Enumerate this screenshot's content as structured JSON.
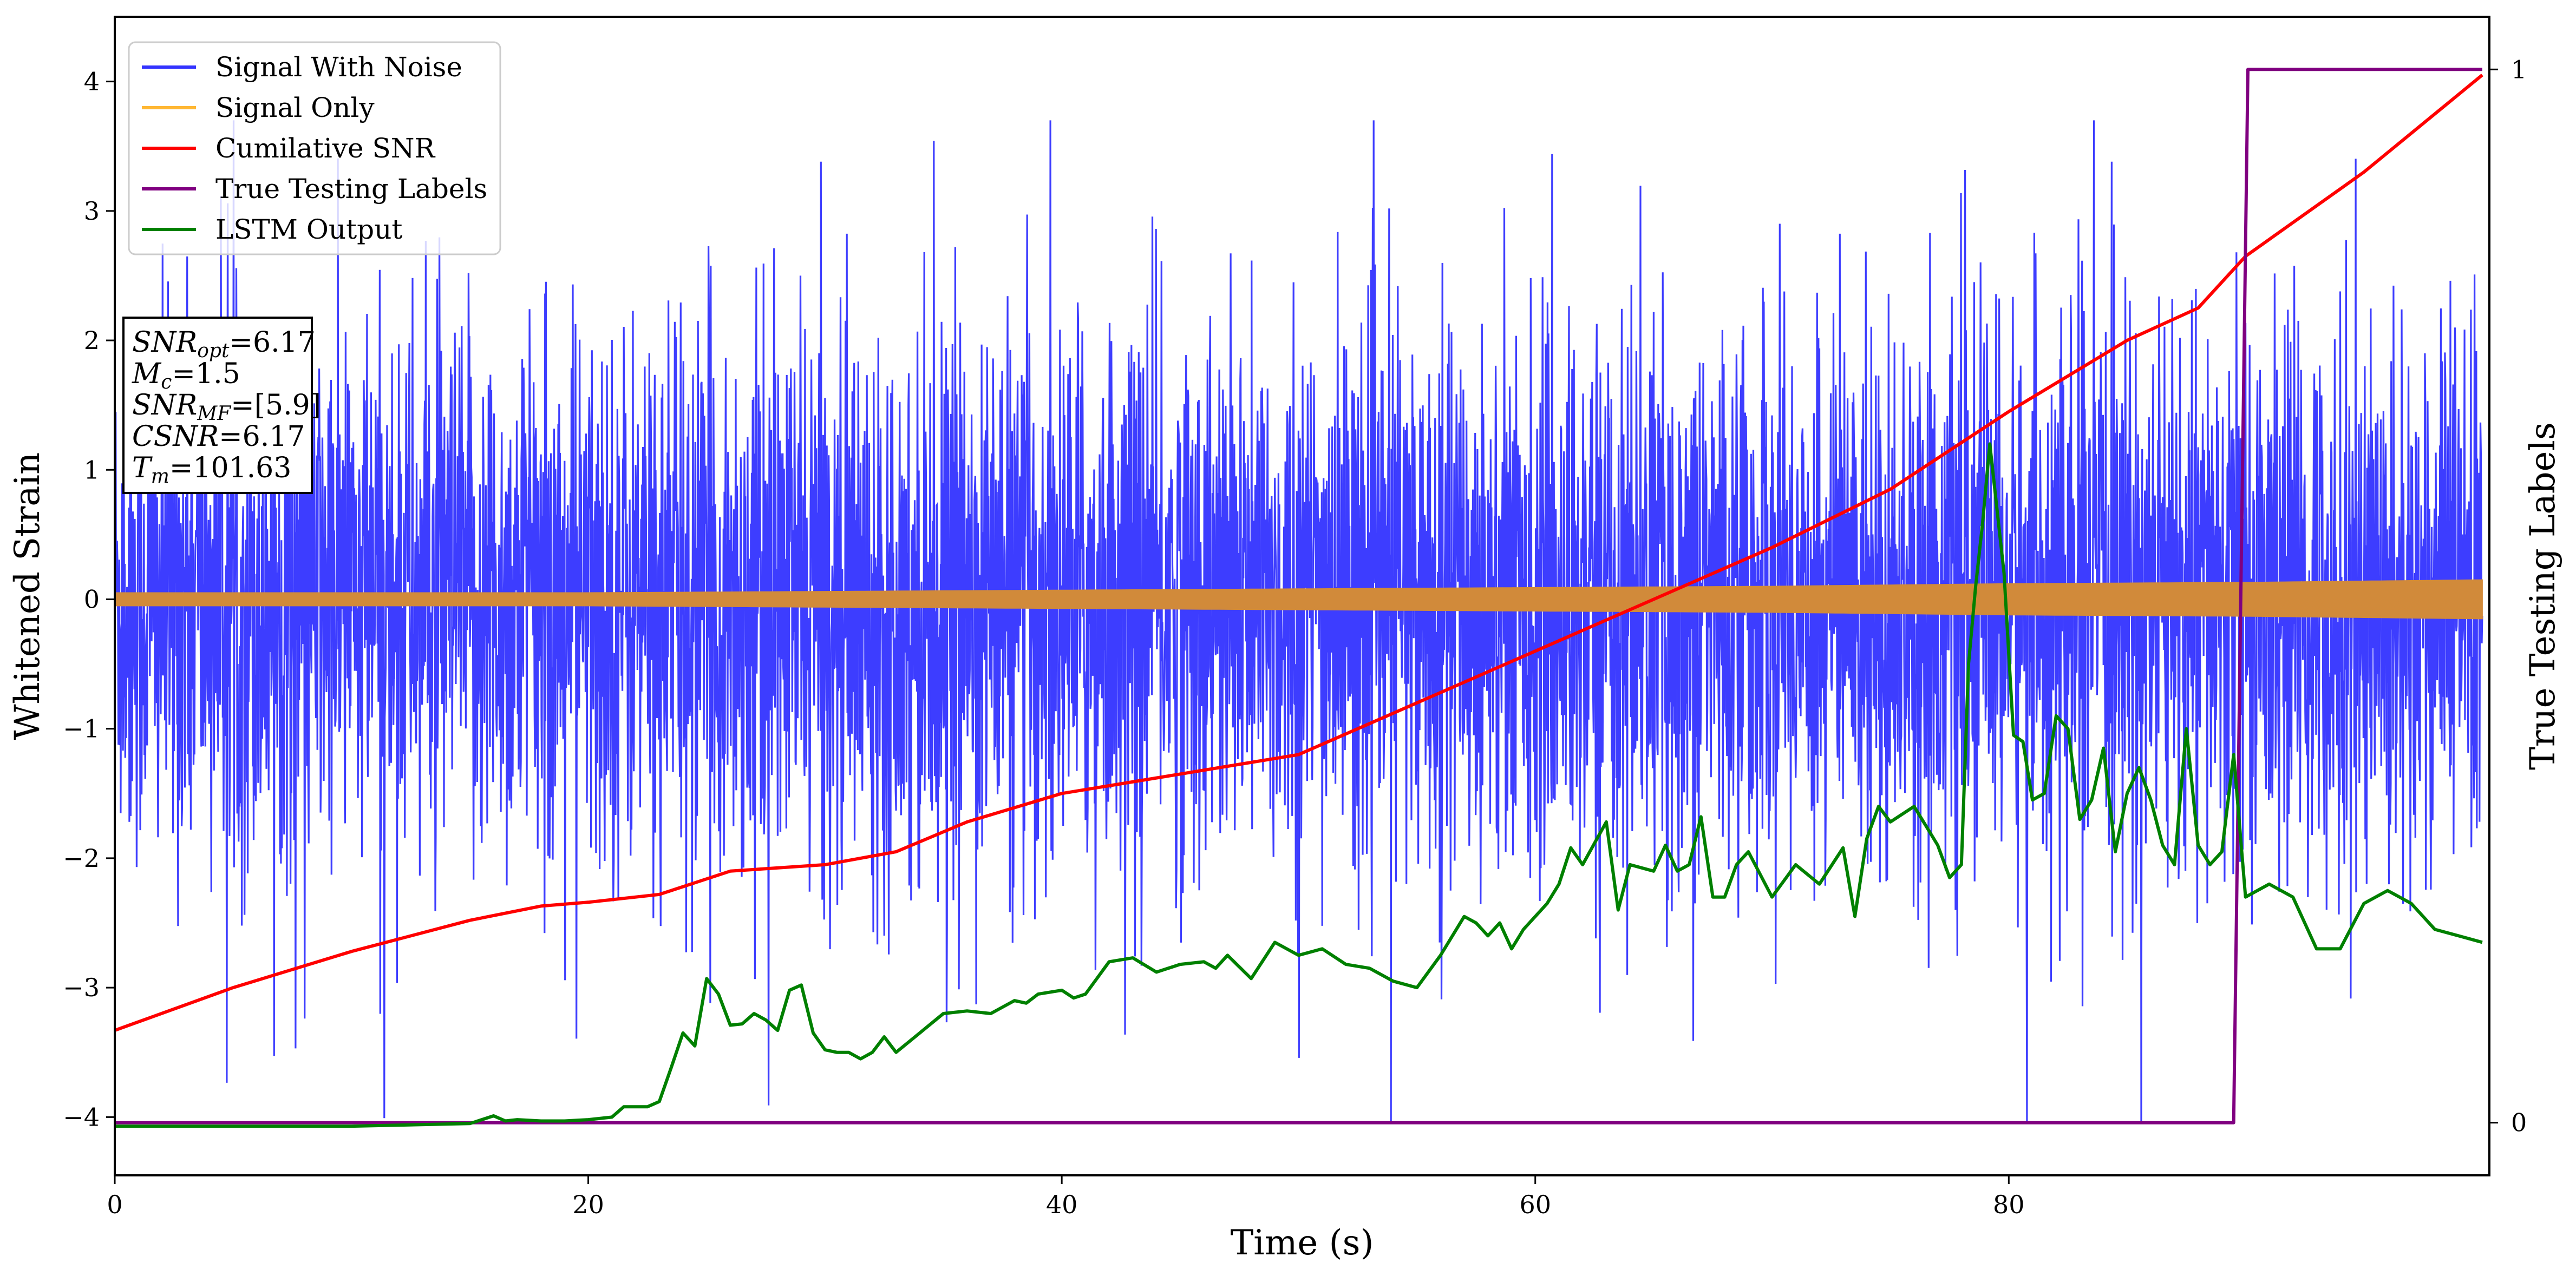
{
  "chart_data": {
    "type": "line",
    "xlabel": "Time (s)",
    "ylabel": "Whitened Strain",
    "ylabel_right": "True Testing Labels",
    "xlim": [
      0,
      100.3
    ],
    "ylim": [
      -4.45,
      4.5
    ],
    "ylim_right": [
      -0.05,
      1.05
    ],
    "x_ticks": [
      0,
      20,
      40,
      60,
      80
    ],
    "y_ticks": [
      -4,
      -3,
      -2,
      -1,
      0,
      1,
      2,
      3,
      4
    ],
    "y_ticks_right": [
      0,
      1
    ],
    "grid": false,
    "legend_position": "upper-left",
    "legend": [
      {
        "label": "Signal With Noise",
        "color": "#3333ff"
      },
      {
        "label": "Signal Only",
        "color": "#ffb733"
      },
      {
        "label": "Cumilative SNR",
        "color": "#ff0000"
      },
      {
        "label": "True Testing Labels",
        "color": "#800080"
      },
      {
        "label": "LSTM Output",
        "color": "#008000"
      }
    ],
    "info_box": [
      {
        "var": "SNR",
        "sub": "opt",
        "value": "=6.17"
      },
      {
        "var": "M",
        "sub": "c",
        "value": "=1.5"
      },
      {
        "var": "SNR",
        "sub": "MF",
        "value": "=[5.9]"
      },
      {
        "var": "CSNR",
        "sub": "",
        "value": "=6.17"
      },
      {
        "var": "T",
        "sub": "m",
        "value": "=101.63"
      }
    ],
    "series": [
      {
        "name": "Signal With Noise",
        "axis": "left",
        "color": "#3333ff",
        "style": "dense-noise",
        "typical_amplitude": 1.6,
        "peak_amplitude": 3.7
      },
      {
        "name": "Signal Only",
        "axis": "left",
        "color": "#d18a3a",
        "style": "envelope",
        "x": [
          0,
          20,
          40,
          50,
          60,
          70,
          80,
          90,
          100
        ],
        "amplitude": [
          0.05,
          0.05,
          0.07,
          0.08,
          0.09,
          0.1,
          0.12,
          0.13,
          0.15
        ]
      },
      {
        "name": "Cumilative SNR",
        "axis": "left",
        "color": "#ff0000",
        "x": [
          0,
          5,
          10,
          15,
          18,
          20,
          23,
          26,
          30,
          33,
          36,
          40,
          45,
          50,
          55,
          60,
          65,
          70,
          75,
          80,
          85,
          88,
          90,
          95,
          100
        ],
        "y": [
          -3.33,
          -3.0,
          -2.72,
          -2.48,
          -2.37,
          -2.34,
          -2.28,
          -2.1,
          -2.05,
          -1.95,
          -1.72,
          -1.5,
          -1.35,
          -1.2,
          -0.8,
          -0.4,
          0.0,
          0.4,
          0.85,
          1.45,
          2.0,
          2.25,
          2.65,
          3.3,
          4.05
        ]
      },
      {
        "name": "True Testing Labels",
        "axis": "right",
        "color": "#800080",
        "x": [
          0,
          89.5,
          90.1,
          100
        ],
        "y": [
          0,
          0,
          1,
          1
        ]
      },
      {
        "name": "LSTM Output",
        "axis": "left",
        "color": "#008000",
        "x": [
          0,
          10,
          15,
          16,
          16.5,
          17,
          18,
          19,
          20,
          21,
          21.5,
          22.5,
          23,
          23.5,
          24,
          24.5,
          25,
          25.5,
          26,
          26.5,
          27,
          27.5,
          28,
          28.5,
          29,
          29.5,
          30,
          30.5,
          31,
          31.5,
          32,
          32.5,
          33,
          34,
          35,
          36,
          37,
          38,
          38.5,
          39,
          40,
          40.5,
          41,
          42,
          43,
          44,
          45,
          46,
          46.5,
          47,
          48,
          49,
          50,
          51,
          52,
          53,
          54,
          55,
          56,
          57,
          57.5,
          58,
          58.5,
          59,
          59.5,
          60,
          60.5,
          61,
          61.5,
          62,
          63,
          63.5,
          64,
          65,
          65.5,
          66,
          66.5,
          67,
          67.5,
          68,
          68.5,
          69,
          70,
          71,
          72,
          73,
          73.5,
          74,
          74.5,
          75,
          76,
          76.5,
          77,
          77.5,
          78,
          78.3,
          78.6,
          78.9,
          79.2,
          79.5,
          79.8,
          80.2,
          80.6,
          81,
          81.5,
          82,
          82.5,
          83,
          83.5,
          84,
          84.5,
          85,
          85.5,
          86,
          86.5,
          87,
          87.5,
          88,
          88.5,
          89,
          89.5,
          90,
          91,
          92,
          93,
          94,
          95,
          96,
          97,
          98,
          99,
          100
        ],
        "y": [
          -4.07,
          -4.07,
          -4.05,
          -3.99,
          -4.03,
          -4.02,
          -4.03,
          -4.03,
          -4.02,
          -4.0,
          -3.92,
          -3.92,
          -3.88,
          -3.62,
          -3.35,
          -3.45,
          -2.93,
          -3.05,
          -3.29,
          -3.28,
          -3.2,
          -3.25,
          -3.33,
          -3.02,
          -2.98,
          -3.35,
          -3.48,
          -3.5,
          -3.5,
          -3.55,
          -3.5,
          -3.38,
          -3.5,
          -3.35,
          -3.2,
          -3.18,
          -3.2,
          -3.1,
          -3.12,
          -3.05,
          -3.02,
          -3.08,
          -3.05,
          -2.8,
          -2.77,
          -2.88,
          -2.82,
          -2.8,
          -2.85,
          -2.75,
          -2.93,
          -2.65,
          -2.75,
          -2.7,
          -2.82,
          -2.85,
          -2.95,
          -3.0,
          -2.75,
          -2.45,
          -2.5,
          -2.6,
          -2.5,
          -2.7,
          -2.55,
          -2.45,
          -2.35,
          -2.2,
          -1.92,
          -2.05,
          -1.72,
          -2.4,
          -2.05,
          -2.1,
          -1.9,
          -2.1,
          -2.05,
          -1.68,
          -2.3,
          -2.3,
          -2.05,
          -1.95,
          -2.3,
          -2.05,
          -2.2,
          -1.92,
          -2.45,
          -1.85,
          -1.6,
          -1.72,
          -1.6,
          -1.75,
          -1.9,
          -2.15,
          -2.05,
          -0.5,
          0.1,
          0.6,
          1.2,
          0.7,
          0.2,
          -1.05,
          -1.1,
          -1.55,
          -1.5,
          -0.9,
          -1.0,
          -1.7,
          -1.55,
          -1.15,
          -1.95,
          -1.5,
          -1.3,
          -1.55,
          -1.9,
          -2.05,
          -1.0,
          -1.9,
          -2.05,
          -1.95,
          -1.2,
          -2.3,
          -2.2,
          -2.3,
          -2.7,
          -2.7,
          -2.35,
          -2.25,
          -2.35,
          -2.55,
          -2.6,
          -2.65
        ]
      }
    ]
  }
}
